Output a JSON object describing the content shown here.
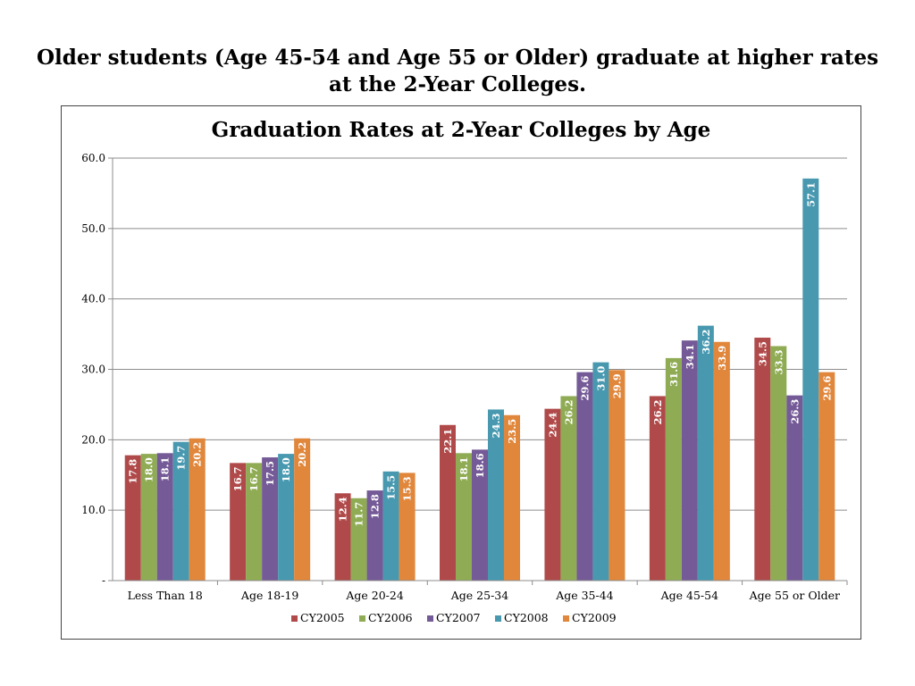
{
  "headline": "Older students (Age 45-54 and Age 55 or Older) graduate at higher rates at the 2-Year Colleges.",
  "chart_data": {
    "type": "bar",
    "title": "Graduation Rates at 2-Year Colleges by Age",
    "categories": [
      "Less Than 18",
      "Age 18-19",
      "Age 20-24",
      "Age 25-34",
      "Age 35-44",
      "Age 45-54",
      "Age 55 or Older"
    ],
    "series": [
      {
        "name": "CY2005",
        "color": "#b04a4a",
        "values": [
          17.8,
          16.7,
          12.4,
          22.1,
          24.4,
          26.2,
          34.5
        ],
        "labels": [
          "17.8",
          "16.7",
          "12.4",
          "22.1",
          "24.4",
          "26.2",
          "34.5"
        ]
      },
      {
        "name": "CY2006",
        "color": "#8fab54",
        "values": [
          18.0,
          16.7,
          11.7,
          18.1,
          26.2,
          31.6,
          33.3
        ],
        "labels": [
          "18.0",
          "16.7",
          "11.7",
          "18.1",
          "26.2",
          "31.6",
          "33.3"
        ]
      },
      {
        "name": "CY2007",
        "color": "#745a96",
        "values": [
          18.1,
          17.5,
          12.8,
          18.6,
          29.6,
          34.1,
          26.3
        ],
        "labels": [
          "18.1",
          "17.5",
          "12.8",
          "18.6",
          "29.6",
          "34.1",
          "26.3"
        ]
      },
      {
        "name": "CY2008",
        "color": "#4899b0",
        "values": [
          19.7,
          18.0,
          15.5,
          24.3,
          31.0,
          36.2,
          57.1
        ],
        "labels": [
          "19.7",
          "18.0",
          "15.5",
          "24.3",
          "31.0",
          "36.2",
          "57.1"
        ]
      },
      {
        "name": "CY2009",
        "color": "#e0873c",
        "values": [
          20.2,
          20.2,
          15.3,
          23.5,
          29.9,
          33.9,
          29.6
        ],
        "labels": [
          "20.2",
          "20.2",
          "15.3",
          "23.5",
          "29.9",
          "33.9",
          "29.6"
        ]
      }
    ],
    "yticks": [
      0,
      10,
      20,
      30,
      40,
      50,
      60
    ],
    "ytick_labels": [
      "-",
      "10.0",
      "20.0",
      "30.0",
      "40.0",
      "50.0",
      "60.0"
    ],
    "ylim": [
      0,
      60
    ],
    "grid": true,
    "legend_position": "bottom",
    "data_labels": "inside-end, rotated"
  }
}
